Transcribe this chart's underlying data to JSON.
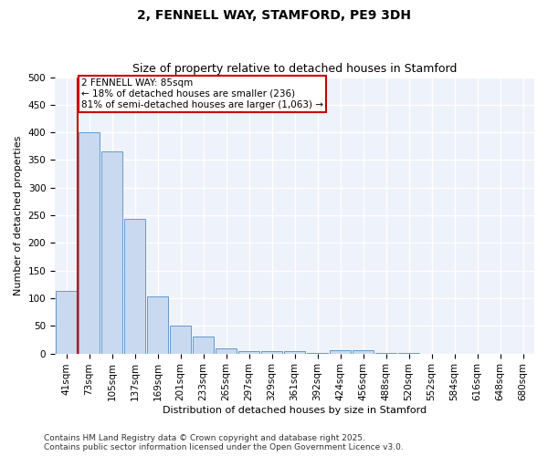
{
  "title": "2, FENNELL WAY, STAMFORD, PE9 3DH",
  "subtitle": "Size of property relative to detached houses in Stamford",
  "xlabel": "Distribution of detached houses by size in Stamford",
  "ylabel": "Number of detached properties",
  "categories": [
    "41sqm",
    "73sqm",
    "105sqm",
    "137sqm",
    "169sqm",
    "201sqm",
    "233sqm",
    "265sqm",
    "297sqm",
    "329sqm",
    "361sqm",
    "392sqm",
    "424sqm",
    "456sqm",
    "488sqm",
    "520sqm",
    "552sqm",
    "584sqm",
    "616sqm",
    "648sqm",
    "680sqm"
  ],
  "values": [
    113,
    400,
    365,
    243,
    104,
    50,
    30,
    9,
    4,
    4,
    4,
    1,
    6,
    6,
    1,
    1,
    0,
    0,
    0,
    0,
    0
  ],
  "bar_color": "#c9d9f0",
  "bar_edge_color": "#6699cc",
  "vline_color": "#cc0000",
  "vline_x": 0.5,
  "annotation_line1": "2 FENNELL WAY: 85sqm",
  "annotation_line2": "← 18% of detached houses are smaller (236)",
  "annotation_line3": "81% of semi-detached houses are larger (1,063) →",
  "annotation_box_color": "#ffffff",
  "annotation_box_edge_color": "#cc0000",
  "ylim": [
    0,
    500
  ],
  "yticks": [
    0,
    50,
    100,
    150,
    200,
    250,
    300,
    350,
    400,
    450,
    500
  ],
  "bg_color": "#eef2fa",
  "grid_color": "#ffffff",
  "footer": "Contains HM Land Registry data © Crown copyright and database right 2025.\nContains public sector information licensed under the Open Government Licence v3.0.",
  "title_fontsize": 10,
  "subtitle_fontsize": 9,
  "xlabel_fontsize": 8,
  "ylabel_fontsize": 8,
  "tick_fontsize": 7.5,
  "footer_fontsize": 6.5,
  "annotation_fontsize": 7.5
}
